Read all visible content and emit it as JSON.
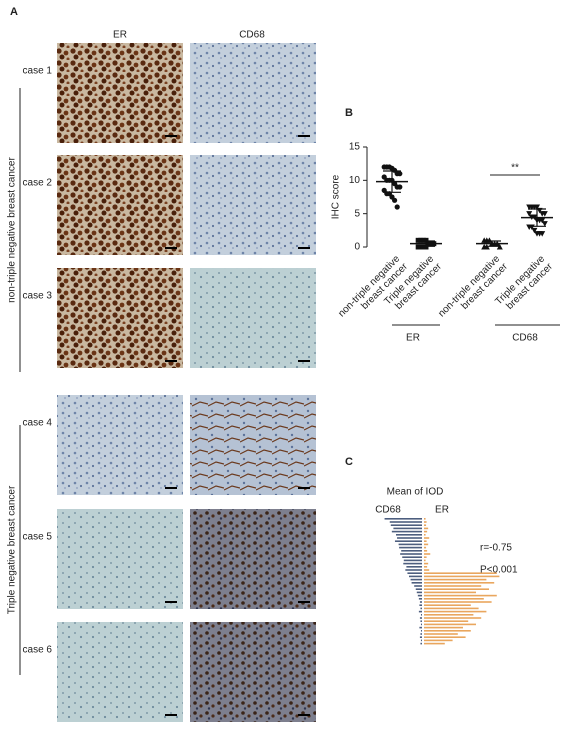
{
  "panel_a": {
    "label": "A",
    "columns": [
      "ER",
      "CD68"
    ],
    "rows": [
      "case 1",
      "case 2",
      "case 3",
      "case 4",
      "case 5",
      "case 6"
    ],
    "groups": [
      "non-triple negative  breast cancer",
      "Triple negative  breast cancer"
    ]
  },
  "chart_data": [
    {
      "type": "dot",
      "label": "B",
      "y_label": "IHC score",
      "categories": [
        "non-triple negative\nbreast cancer",
        "Triple negative\nbreast cancer",
        "non-triple negative\nbreast cancer",
        "Triple negative\nbreast cancer"
      ],
      "group_labels": [
        "ER",
        "CD68"
      ],
      "values": [
        [
          12,
          12,
          12,
          11.8,
          11.5,
          11,
          11,
          10.5,
          10,
          10,
          10,
          9.5,
          9,
          9,
          8.5,
          8,
          8,
          7.5,
          7,
          6
        ],
        [
          1,
          1,
          1,
          1,
          0.5,
          0.5,
          0.5,
          0,
          0,
          0,
          0
        ],
        [
          1,
          1,
          1,
          0.5,
          0.5,
          0.5,
          0,
          0,
          0
        ],
        [
          6,
          6,
          6,
          6,
          5.5,
          5,
          5,
          5,
          4.5,
          4.5,
          4,
          4,
          4,
          3.5,
          3,
          3,
          2.5,
          2,
          2,
          2
        ]
      ],
      "mean": [
        9.8,
        0.5,
        0.5,
        4.4
      ],
      "sd": [
        1.6,
        0.4,
        0.4,
        1.3
      ],
      "annotation": "**",
      "ylim": [
        0,
        15
      ],
      "yticks": [
        0,
        5,
        10,
        15
      ],
      "color": "#111111"
    },
    {
      "type": "butterfly",
      "label": "C",
      "title": "Mean of IOD",
      "series": [
        {
          "name": "CD68",
          "color": "#4d5e7e",
          "values": [
            72,
            62,
            60,
            55,
            58,
            50,
            48,
            52,
            45,
            44,
            40,
            42,
            38,
            35,
            36,
            30,
            32,
            28,
            25,
            22,
            20,
            15,
            12,
            10,
            8,
            6,
            4,
            5,
            3,
            6,
            2,
            4,
            3,
            2,
            5,
            2,
            3,
            4,
            2,
            3
          ]
        },
        {
          "name": "ER",
          "color": "#e9a65e",
          "values": [
            3,
            5,
            4,
            8,
            6,
            3,
            10,
            5,
            8,
            4,
            6,
            12,
            5,
            3,
            8,
            6,
            10,
            140,
            145,
            120,
            135,
            110,
            125,
            100,
            140,
            115,
            130,
            90,
            105,
            120,
            95,
            110,
            85,
            100,
            75,
            90,
            65,
            80,
            55,
            40
          ]
        }
      ],
      "annotations": [
        "r=-0.75",
        "P<0.001"
      ]
    }
  ]
}
